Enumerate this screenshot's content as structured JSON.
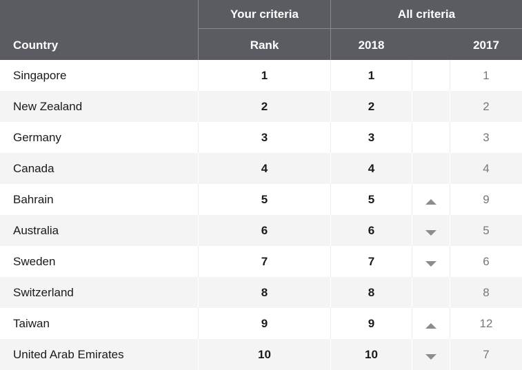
{
  "header": {
    "your_criteria": "Your criteria",
    "all_criteria": "All criteria",
    "country": "Country",
    "rank": "Rank",
    "year_2018": "2018",
    "year_2017": "2017"
  },
  "colors": {
    "header_bg": "#5b5c61",
    "row_alt_bg": "#f4f4f4",
    "trend_arrow": "#8c8c8c",
    "prev_rank_text": "#777777"
  },
  "rows": [
    {
      "country": "Singapore",
      "rank": "1",
      "rank_2018": "1",
      "trend": "",
      "rank_2017": "1"
    },
    {
      "country": "New Zealand",
      "rank": "2",
      "rank_2018": "2",
      "trend": "",
      "rank_2017": "2"
    },
    {
      "country": "Germany",
      "rank": "3",
      "rank_2018": "3",
      "trend": "",
      "rank_2017": "3"
    },
    {
      "country": "Canada",
      "rank": "4",
      "rank_2018": "4",
      "trend": "",
      "rank_2017": "4"
    },
    {
      "country": "Bahrain",
      "rank": "5",
      "rank_2018": "5",
      "trend": "up",
      "rank_2017": "9"
    },
    {
      "country": "Australia",
      "rank": "6",
      "rank_2018": "6",
      "trend": "down",
      "rank_2017": "5"
    },
    {
      "country": "Sweden",
      "rank": "7",
      "rank_2018": "7",
      "trend": "down",
      "rank_2017": "6"
    },
    {
      "country": "Switzerland",
      "rank": "8",
      "rank_2018": "8",
      "trend": "",
      "rank_2017": "8"
    },
    {
      "country": "Taiwan",
      "rank": "9",
      "rank_2018": "9",
      "trend": "up",
      "rank_2017": "12"
    },
    {
      "country": "United Arab Emirates",
      "rank": "10",
      "rank_2018": "10",
      "trend": "down",
      "rank_2017": "7"
    }
  ]
}
